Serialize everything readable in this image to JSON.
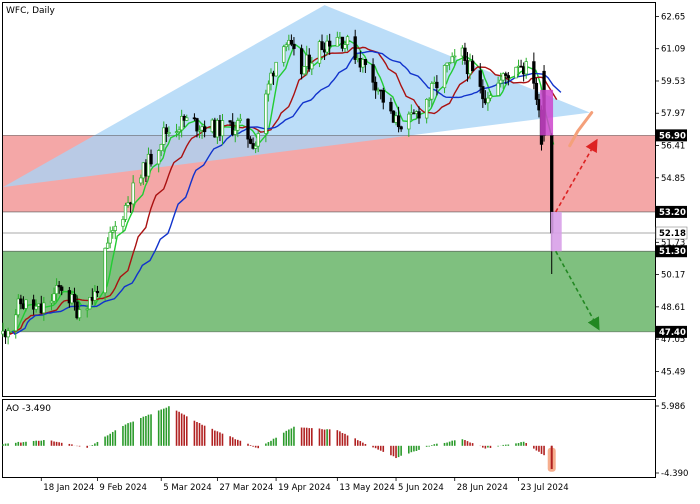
{
  "main_panel": {
    "label": "WFC, Daily"
  },
  "oscillator": {
    "label": "AO -3.490",
    "axis_ticks": [
      "5.986",
      "-4.390"
    ]
  },
  "colors": {
    "triangle": "#a8d4f6",
    "resistance_zone": "#f08a8a",
    "support_zone": "#4ea84e",
    "candle_up": "#2bb02b",
    "candle_down": "#000000",
    "ma_fast": "#22cc33",
    "ma_mid": "#aa1111",
    "ma_slow": "#1133cc",
    "ao_up": "#2a9a2a",
    "ao_down": "#b02020",
    "arrow_up": "#dd2222",
    "arrow_down": "#228822",
    "arrow_forecast": "#f4a07a",
    "highlight_top": "#cc44cc",
    "highlight_bottom": "#d8a0e8"
  },
  "chart_data": {
    "type": "candlestick",
    "title": "WFC, Daily",
    "x_axis_labels": [
      "18 Jan 2024",
      "9 Feb 2024",
      "5 Mar 2024",
      "27 Mar 2024",
      "19 Apr 2024",
      "13 May 2024",
      "5 Jun 2024",
      "28 Jun 2024",
      "23 Jul 2024"
    ],
    "y_axis_ticks": [
      62.65,
      61.09,
      59.53,
      57.97,
      56.41,
      54.85,
      53.29,
      51.73,
      50.17,
      48.61,
      47.05,
      45.49
    ],
    "ylim": [
      44.3,
      63.3
    ],
    "price_levels": [
      {
        "label": "56.90",
        "value": 56.9
      },
      {
        "label": "53.20",
        "value": 53.2
      },
      {
        "label": "52.18",
        "value": 52.18
      },
      {
        "label": "51.30",
        "value": 51.3
      },
      {
        "label": "47.40",
        "value": 47.4
      }
    ],
    "zones": [
      {
        "name": "resistance",
        "from": 53.2,
        "to": 56.9
      },
      {
        "name": "support",
        "from": 47.4,
        "to": 51.3
      }
    ],
    "triangle": [
      {
        "date": "2024-01-03",
        "price": 54.4
      },
      {
        "date": "2024-05-08",
        "price": 63.2
      },
      {
        "date": "2024-08-20",
        "price": 58.0
      }
    ],
    "close_anchors": [
      {
        "date": "2024-01-03",
        "close": 47.3
      },
      {
        "date": "2024-01-10",
        "close": 48.8
      },
      {
        "date": "2024-01-18",
        "close": 48.4
      },
      {
        "date": "2024-01-26",
        "close": 49.6
      },
      {
        "date": "2024-02-01",
        "close": 48.5
      },
      {
        "date": "2024-02-08",
        "close": 49.2
      },
      {
        "date": "2024-02-14",
        "close": 51.9
      },
      {
        "date": "2024-02-22",
        "close": 54.0
      },
      {
        "date": "2024-02-29",
        "close": 55.6
      },
      {
        "date": "2024-03-06",
        "close": 57.0
      },
      {
        "date": "2024-03-14",
        "close": 57.6
      },
      {
        "date": "2024-03-21",
        "close": 57.4
      },
      {
        "date": "2024-03-27",
        "close": 57.2
      },
      {
        "date": "2024-04-04",
        "close": 57.4
      },
      {
        "date": "2024-04-11",
        "close": 56.5
      },
      {
        "date": "2024-04-17",
        "close": 59.8
      },
      {
        "date": "2024-04-22",
        "close": 61.6
      },
      {
        "date": "2024-04-29",
        "close": 60.0
      },
      {
        "date": "2024-05-06",
        "close": 61.2
      },
      {
        "date": "2024-05-13",
        "close": 61.8
      },
      {
        "date": "2024-05-20",
        "close": 60.9
      },
      {
        "date": "2024-05-28",
        "close": 59.5
      },
      {
        "date": "2024-06-04",
        "close": 57.5
      },
      {
        "date": "2024-06-11",
        "close": 57.6
      },
      {
        "date": "2024-06-18",
        "close": 58.8
      },
      {
        "date": "2024-06-24",
        "close": 60.0
      },
      {
        "date": "2024-07-01",
        "close": 60.8
      },
      {
        "date": "2024-07-09",
        "close": 58.8
      },
      {
        "date": "2024-07-16",
        "close": 59.5
      },
      {
        "date": "2024-07-23",
        "close": 60.5
      },
      {
        "date": "2024-07-29",
        "close": 59.7
      },
      {
        "date": "2024-08-01",
        "close": 56.9
      },
      {
        "date": "2024-08-05",
        "close": 52.18
      }
    ],
    "ao_anchors": [
      {
        "date": "2024-01-03",
        "value": 0.3
      },
      {
        "date": "2024-01-20",
        "value": 0.9
      },
      {
        "date": "2024-02-05",
        "value": -0.3
      },
      {
        "date": "2024-02-20",
        "value": 3.2
      },
      {
        "date": "2024-03-08",
        "value": 5.9
      },
      {
        "date": "2024-03-22",
        "value": 3.0
      },
      {
        "date": "2024-04-12",
        "value": -0.4
      },
      {
        "date": "2024-04-26",
        "value": 2.9
      },
      {
        "date": "2024-05-13",
        "value": 2.3
      },
      {
        "date": "2024-06-05",
        "value": -1.8
      },
      {
        "date": "2024-06-20",
        "value": 0.2
      },
      {
        "date": "2024-07-01",
        "value": 1.0
      },
      {
        "date": "2024-07-10",
        "value": -0.4
      },
      {
        "date": "2024-07-25",
        "value": 0.6
      },
      {
        "date": "2024-08-02",
        "value": -1.4
      },
      {
        "date": "2024-08-05",
        "value": -3.49
      }
    ],
    "ylim_ao": [
      -4.39,
      5.986
    ]
  }
}
